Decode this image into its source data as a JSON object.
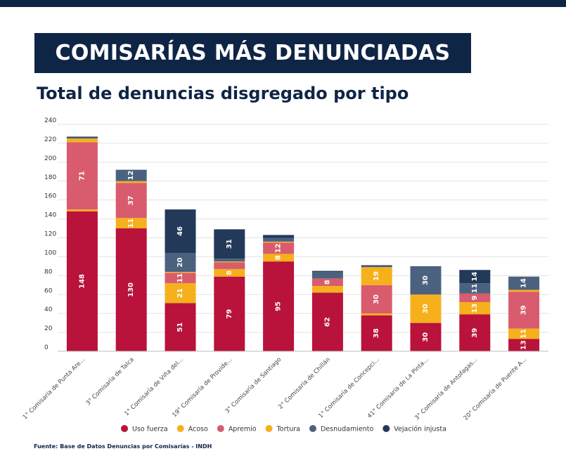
{
  "header": {
    "title": "COMISARÍAS MÁS DENUNCIADAS",
    "subtitle": "Total de denuncias disgregado por tipo"
  },
  "source": "Fuente: Base de Datos Denuncias por Comisarías - INDH",
  "colors": {
    "Uso fuerza": "#b9123b",
    "Acoso": "#f5b01c",
    "Apremio": "#d85c6d",
    "Tortura": "#f5b01c",
    "Desnudamiento": "#4b627f",
    "Vejación injusta": "#22395a",
    "brand": "#0f2546"
  },
  "chart_data": {
    "type": "bar",
    "stacked": true,
    "categories": [
      "1° Comisaría de Punta Are...",
      "3° Comisaría de Talca",
      "1° Comisaría de Viña del...",
      "19° Comisaría de Provide...",
      "3° Comisaría de Santiago",
      "2° Comisaría de Chillán",
      "1° Comisaría de Concepci...",
      "41° Comisaría de La Pinta...",
      "3° Comisaría de Antofagas...",
      "20° Comisaría de Puente A..."
    ],
    "series": [
      {
        "name": "Uso fuerza",
        "values": [
          148,
          130,
          51,
          79,
          95,
          62,
          38,
          30,
          39,
          13
        ]
      },
      {
        "name": "Acoso",
        "values": [
          2,
          11,
          21,
          8,
          8,
          7,
          2,
          30,
          13,
          11
        ]
      },
      {
        "name": "Apremio",
        "values": [
          71,
          37,
          11,
          7,
          12,
          8,
          30,
          0,
          9,
          39
        ]
      },
      {
        "name": "Tortura",
        "values": [
          4,
          2,
          1,
          1,
          1,
          0,
          19,
          0,
          0,
          2
        ]
      },
      {
        "name": "Desnudamiento",
        "values": [
          1,
          12,
          20,
          3,
          4,
          7,
          1,
          30,
          11,
          14
        ]
      },
      {
        "name": "Vejación injusta",
        "values": [
          1,
          0,
          46,
          31,
          3,
          1,
          1,
          0,
          14,
          0
        ]
      }
    ],
    "label_threshold": 8,
    "yticks": [
      0,
      20,
      40,
      60,
      80,
      100,
      120,
      140,
      160,
      180,
      200,
      220,
      240
    ],
    "ylim": [
      0,
      240
    ],
    "grid": true,
    "legend_position": "bottom"
  }
}
